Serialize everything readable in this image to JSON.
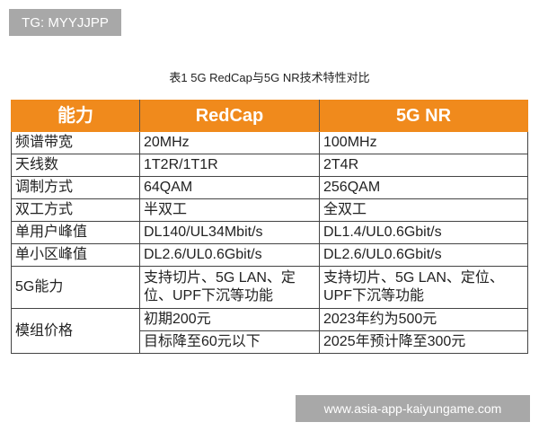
{
  "watermark_top": "TG: MYYJJPP",
  "watermark_bottom": "www.asia-app-kaiyungame.com",
  "title": "表1  5G RedCap与5G NR技术特性对比",
  "header_color": "#f08a1c",
  "headers": [
    "能力",
    "RedCap",
    "5G NR"
  ],
  "rows": [
    [
      "频谱带宽",
      "20MHz",
      "100MHz"
    ],
    [
      "天线数",
      "1T2R/1T1R",
      "2T4R"
    ],
    [
      "调制方式",
      "64QAM",
      "256QAM"
    ],
    [
      "双工方式",
      "半双工",
      "全双工"
    ],
    [
      "单用户峰值",
      "DL140/UL34Mbit/s",
      "DL1.4/UL0.6Gbit/s"
    ],
    [
      "单小区峰值",
      "DL2.6/UL0.6Gbit/s",
      "DL2.6/UL0.6Gbit/s"
    ],
    [
      "5G能力",
      "支持切片、5G LAN、定位、UPF下沉等功能",
      "支持切片、5G LAN、定位、UPF下沉等功能"
    ]
  ],
  "price": {
    "label": "模组价格",
    "redcap": [
      "初期200元",
      "目标降至60元以下"
    ],
    "nr": [
      "2023年约为500元",
      "2025年预计降至300元"
    ]
  }
}
